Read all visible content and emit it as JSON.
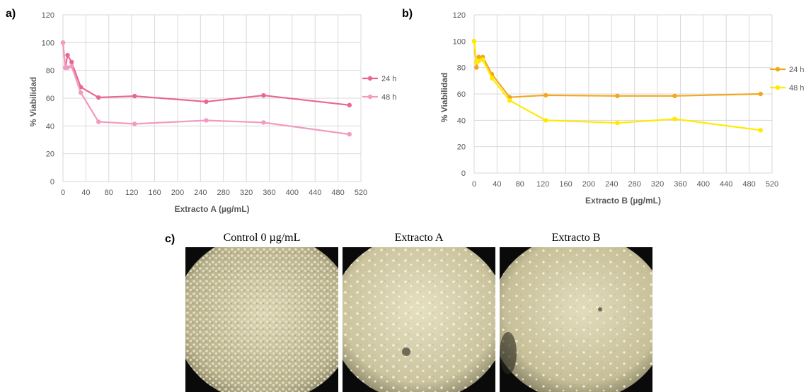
{
  "panels": {
    "a": "a)",
    "b": "b)",
    "c": "c)"
  },
  "chart_data": [
    {
      "type": "line",
      "xlabel": "Extracto A (µg/mL)",
      "ylabel": "% Viabilidad",
      "xlim": [
        0,
        520
      ],
      "ylim": [
        0,
        120
      ],
      "xticks": [
        0,
        40,
        80,
        120,
        160,
        200,
        240,
        280,
        320,
        360,
        400,
        440,
        480,
        520
      ],
      "yticks": [
        0,
        20,
        40,
        60,
        80,
        100,
        120
      ],
      "grid": true,
      "legend": "right",
      "series": [
        {
          "name": "24 h",
          "color": "#e8688f",
          "x": [
            0,
            4,
            8,
            15,
            31,
            62,
            125,
            250,
            350,
            500
          ],
          "y": [
            100,
            82,
            91,
            86,
            68,
            60.5,
            61.5,
            57.5,
            62,
            55
          ]
        },
        {
          "name": "48 h",
          "color": "#f29ac0",
          "x": [
            0,
            4,
            8,
            15,
            31,
            62,
            125,
            250,
            350,
            500
          ],
          "y": [
            100,
            82,
            82,
            83,
            64,
            43,
            41.5,
            44,
            42.5,
            34
          ]
        }
      ]
    },
    {
      "type": "line",
      "xlabel": "Extracto B (µg/mL)",
      "ylabel": "% Viabilidad",
      "xlim": [
        0,
        520
      ],
      "ylim": [
        0,
        120
      ],
      "xticks": [
        0,
        40,
        80,
        120,
        160,
        200,
        240,
        280,
        320,
        360,
        400,
        440,
        480,
        520
      ],
      "yticks": [
        0,
        20,
        40,
        60,
        80,
        100,
        120
      ],
      "grid": true,
      "legend": "right",
      "series": [
        {
          "name": "24 h",
          "color": "#f2a81d",
          "x": [
            0,
            4,
            8,
            15,
            31,
            62,
            125,
            250,
            350,
            500
          ],
          "y": [
            100,
            80,
            88,
            88,
            75,
            57.5,
            59,
            58.5,
            58.5,
            60
          ]
        },
        {
          "name": "48 h",
          "color": "#ffea00",
          "x": [
            0,
            4,
            8,
            15,
            31,
            62,
            125,
            250,
            350,
            500
          ],
          "y": [
            100,
            84,
            85,
            86,
            72,
            55,
            40,
            38,
            41,
            32.5
          ]
        }
      ]
    }
  ],
  "micrographs": [
    {
      "title": "Control 0 µg/mL"
    },
    {
      "title": "Extracto A"
    },
    {
      "title": "Extracto B"
    }
  ]
}
